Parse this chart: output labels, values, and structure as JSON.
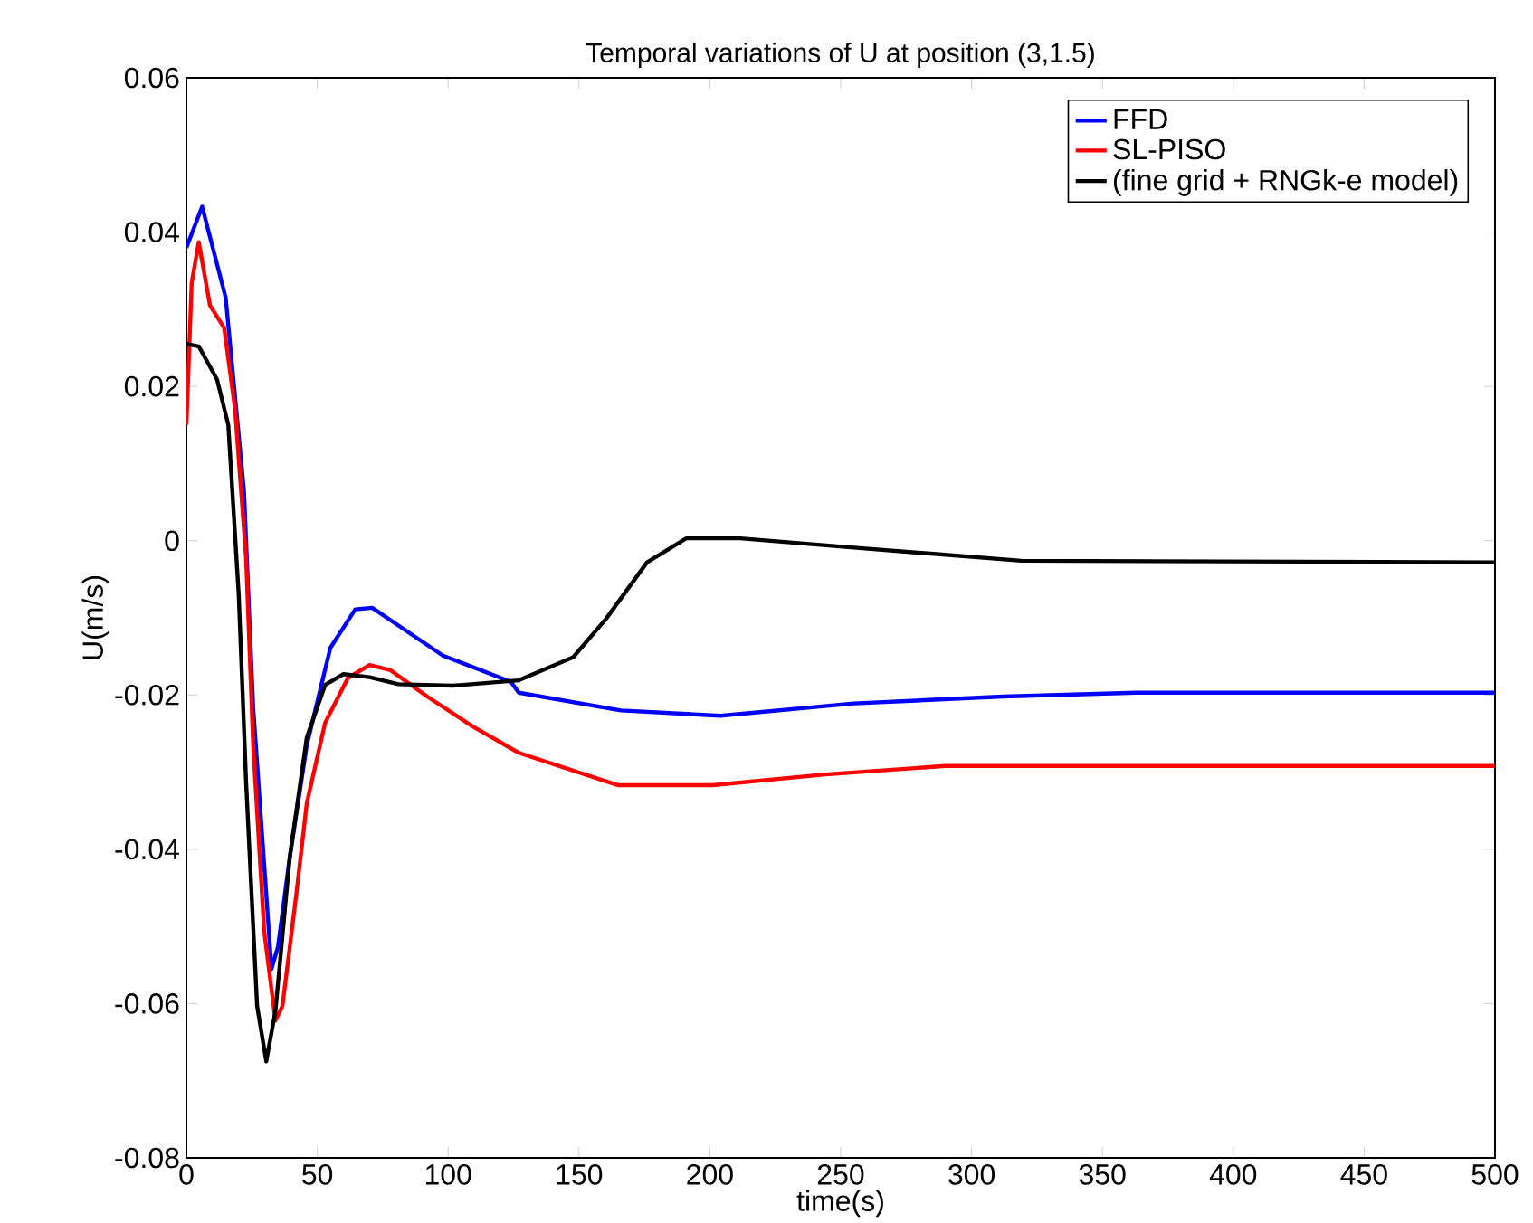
{
  "chart_data": {
    "type": "line",
    "title": "Temporal variations of U at position (3,1.5)",
    "xlabel": "time(s)",
    "ylabel": "U(m/s)",
    "xlim": [
      0,
      500
    ],
    "ylim": [
      -0.08,
      0.06
    ],
    "xticks": [
      0,
      50,
      100,
      150,
      200,
      250,
      300,
      350,
      400,
      450,
      500
    ],
    "yticks": [
      -0.08,
      -0.06,
      -0.04,
      -0.02,
      {
        "value": 0,
        "label": "0"
      },
      0.02,
      0.04,
      0.06
    ],
    "grid": false,
    "legend": "top right",
    "line_style": "solid",
    "marker": "none",
    "series": [
      {
        "name": "FFD",
        "color": "#0000ff",
        "x": [
          0,
          6,
          15,
          22,
          25.5,
          32.5,
          35,
          39.5,
          46,
          55,
          64.5,
          71,
          81,
          98,
          124,
          127,
          166,
          204,
          255,
          312,
          363,
          500
        ],
        "values": [
          0.038,
          0.0433,
          0.0315,
          0.0064,
          -0.0216,
          -0.0555,
          -0.0526,
          -0.041,
          -0.0265,
          -0.0139,
          -0.0089,
          -0.0087,
          -0.011,
          -0.0149,
          -0.0183,
          -0.0197,
          -0.022,
          -0.0227,
          -0.0211,
          -0.0202,
          -0.0197,
          -0.0197
        ]
      },
      {
        "name": "SL-PISO",
        "color": "#ff0000",
        "x": [
          0,
          2,
          4.7,
          9,
          14.4,
          18.6,
          22.8,
          25.5,
          29.7,
          34,
          36.7,
          42,
          46,
          53,
          61.7,
          70,
          78,
          92,
          109,
          127,
          165,
          201,
          244,
          290,
          500
        ],
        "values": [
          0.015,
          0.0334,
          0.0387,
          0.0305,
          0.0276,
          0.017,
          -0.0023,
          -0.0265,
          -0.0506,
          -0.0622,
          -0.0603,
          -0.0458,
          -0.034,
          -0.0236,
          -0.0178,
          -0.0161,
          -0.0168,
          -0.0202,
          -0.024,
          -0.0275,
          -0.0317,
          -0.0317,
          -0.0303,
          -0.0292,
          -0.0292
        ]
      },
      {
        "name": "(fine grid + RNGk-e model)",
        "color": "#000000",
        "x": [
          0,
          4.7,
          11.7,
          16,
          20,
          22.8,
          27,
          30.5,
          34,
          39.5,
          46,
          53,
          60,
          70,
          81,
          101.7,
          127,
          147.8,
          160.4,
          176,
          191,
          211.6,
          255,
          319,
          500
        ],
        "values": [
          0.0255,
          0.0252,
          0.0209,
          0.015,
          -0.0071,
          -0.0313,
          -0.0603,
          -0.0675,
          -0.061,
          -0.041,
          -0.0255,
          -0.0187,
          -0.0173,
          -0.0177,
          -0.0186,
          -0.0188,
          -0.0181,
          -0.0151,
          -0.0101,
          -0.0028,
          0.0003,
          0.0003,
          -0.0009,
          -0.0026,
          -0.0028
        ]
      }
    ]
  }
}
